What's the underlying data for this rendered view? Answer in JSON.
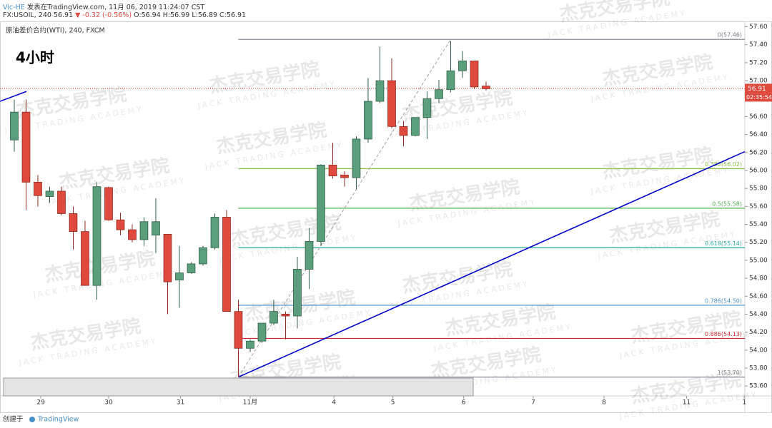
{
  "header": {
    "author": "Vic-HE",
    "published": "发表在TradingView.com, 11月 06, 2019 11:24:07 CST",
    "symbol": "FX:USOIL, 240",
    "last": "56.91",
    "change": "▼ -0.32 (-0.56%)",
    "ohlc": "O:56.94 H:56.99 L:56.89 C:56.91"
  },
  "footer": {
    "created": "创建于",
    "brand": "TradingView"
  },
  "watermark": {
    "title": "杰克交易学院",
    "subtitle": "JACK TRADING ACADEMY"
  },
  "chart_data": {
    "type": "candlestick",
    "title": "原油差价合约(WTI), 240, FXCM",
    "annotation": "4小时",
    "up_color": "#5b9e7c",
    "down_color": "#e0493e",
    "ohlc": [
      [
        56.34,
        56.79,
        56.21,
        56.65
      ],
      [
        56.65,
        56.79,
        55.56,
        55.87
      ],
      [
        55.87,
        55.95,
        55.6,
        55.72
      ],
      [
        55.71,
        55.82,
        55.64,
        55.77
      ],
      [
        55.77,
        55.82,
        55.5,
        55.52
      ],
      [
        55.52,
        55.6,
        55.12,
        55.32
      ],
      [
        55.32,
        55.44,
        54.72,
        54.72
      ],
      [
        54.72,
        55.87,
        54.56,
        55.82
      ],
      [
        55.81,
        55.82,
        55.44,
        55.45
      ],
      [
        55.45,
        55.53,
        55.28,
        55.34
      ],
      [
        55.34,
        55.4,
        55.2,
        55.23
      ],
      [
        55.23,
        55.48,
        55.16,
        55.43
      ],
      [
        55.28,
        55.69,
        55.08,
        55.43
      ],
      [
        55.29,
        55.29,
        54.4,
        54.76
      ],
      [
        54.78,
        55.16,
        54.47,
        54.86
      ],
      [
        54.86,
        54.98,
        54.85,
        54.96
      ],
      [
        54.96,
        55.16,
        54.94,
        55.14
      ],
      [
        55.14,
        55.52,
        55.12,
        55.48
      ],
      [
        55.48,
        55.56,
        54.43,
        54.43
      ],
      [
        54.43,
        54.56,
        53.7,
        54.02
      ],
      [
        54.02,
        54.12,
        53.98,
        54.1
      ],
      [
        54.1,
        54.3,
        54.08,
        54.3
      ],
      [
        54.3,
        54.56,
        54.28,
        54.43
      ],
      [
        54.4,
        54.43,
        54.12,
        54.38
      ],
      [
        54.38,
        55.04,
        54.24,
        54.9
      ],
      [
        54.9,
        55.36,
        54.68,
        55.21
      ],
      [
        55.21,
        56.07,
        55.16,
        56.06
      ],
      [
        56.06,
        56.31,
        55.91,
        55.94
      ],
      [
        55.95,
        55.99,
        55.82,
        55.92
      ],
      [
        55.92,
        56.38,
        55.79,
        56.35
      ],
      [
        56.35,
        57.03,
        56.31,
        56.77
      ],
      [
        56.77,
        57.38,
        56.75,
        57.0
      ],
      [
        57.0,
        57.25,
        56.47,
        56.49
      ],
      [
        56.49,
        56.55,
        56.27,
        56.39
      ],
      [
        56.39,
        56.59,
        56.38,
        56.59
      ],
      [
        56.59,
        56.88,
        56.35,
        56.8
      ],
      [
        56.8,
        57.01,
        56.75,
        56.9
      ],
      [
        56.9,
        57.44,
        56.87,
        57.11
      ],
      [
        57.11,
        57.33,
        57.03,
        57.22
      ],
      [
        57.22,
        57.22,
        56.91,
        56.93
      ],
      [
        56.94,
        56.99,
        56.89,
        56.91
      ]
    ],
    "xlim": [
      -1.21,
      61.94
    ],
    "xticks": [
      {
        "value": 2.25,
        "label": "29"
      },
      {
        "value": 8,
        "label": "30"
      },
      {
        "value": 14.1,
        "label": "31"
      },
      {
        "value": 20,
        "label": "11月"
      },
      {
        "value": 27.1,
        "label": "4"
      },
      {
        "value": 32.1,
        "label": "5"
      },
      {
        "value": 38.1,
        "label": "6"
      },
      {
        "value": 44,
        "label": "7"
      },
      {
        "value": 50,
        "label": "8"
      },
      {
        "value": 57,
        "label": "11"
      },
      {
        "value": 61.9,
        "label": "1"
      }
    ],
    "ylim": [
      53.49,
      57.66
    ],
    "yticks": [
      {
        "value": 53.6,
        "label": "53.60"
      },
      {
        "value": 53.8,
        "label": "53.80"
      },
      {
        "value": 54,
        "label": "54.00"
      },
      {
        "value": 54.2,
        "label": "54.20"
      },
      {
        "value": 54.4,
        "label": "54.40"
      },
      {
        "value": 54.6,
        "label": "54.60"
      },
      {
        "value": 54.8,
        "label": "54.80"
      },
      {
        "value": 55,
        "label": "55.00"
      },
      {
        "value": 55.2,
        "label": "55.20"
      },
      {
        "value": 55.4,
        "label": "55.40"
      },
      {
        "value": 55.6,
        "label": "55.60"
      },
      {
        "value": 55.8,
        "label": "55.80"
      },
      {
        "value": 56,
        "label": "56.00"
      },
      {
        "value": 56.2,
        "label": "56.20"
      },
      {
        "value": 56.4,
        "label": "56.40"
      },
      {
        "value": 56.6,
        "label": "56.60"
      },
      {
        "value": 56.8,
        "label": "56.80"
      },
      {
        "value": 57,
        "label": "57.00"
      },
      {
        "value": 57.2,
        "label": "57.20"
      },
      {
        "value": 57.4,
        "label": "57.40"
      },
      {
        "value": 57.6,
        "label": "57.60"
      }
    ],
    "current_price": 56.91,
    "current_color": "#e0493e",
    "countdown": "02:35:54",
    "fib": {
      "start": 19,
      "levels": [
        {
          "label": "0(57.46)",
          "value": 57.46,
          "color": "#787b86"
        },
        {
          "label": "0.382(56.02)",
          "value": 56.02,
          "color": "#8bc34a"
        },
        {
          "label": "0.5(55.58)",
          "value": 55.58,
          "color": "#4caf50"
        },
        {
          "label": "0.618(55.14)",
          "value": 55.14,
          "color": "#26a69a"
        },
        {
          "label": "0.786(54.50)",
          "value": 54.5,
          "color": "#4a90c8"
        },
        {
          "label": "0.886(54.13)",
          "value": 54.13,
          "color": "#d32f2f"
        },
        {
          "label": "1(53.70)",
          "value": 53.7,
          "color": "#787b86"
        }
      ]
    },
    "trendlines": [
      {
        "color": "#0000c8",
        "x": [
          -1.21,
          1.03
        ],
        "y": [
          56.77,
          56.88
        ]
      },
      {
        "color": "#0000c8",
        "x": [
          19,
          61.94
        ],
        "y": [
          53.7,
          56.21
        ]
      },
      {
        "color": "#9e9e9e",
        "dashed": true,
        "x": [
          19,
          37
        ],
        "y": [
          53.7,
          57.46
        ]
      }
    ]
  }
}
